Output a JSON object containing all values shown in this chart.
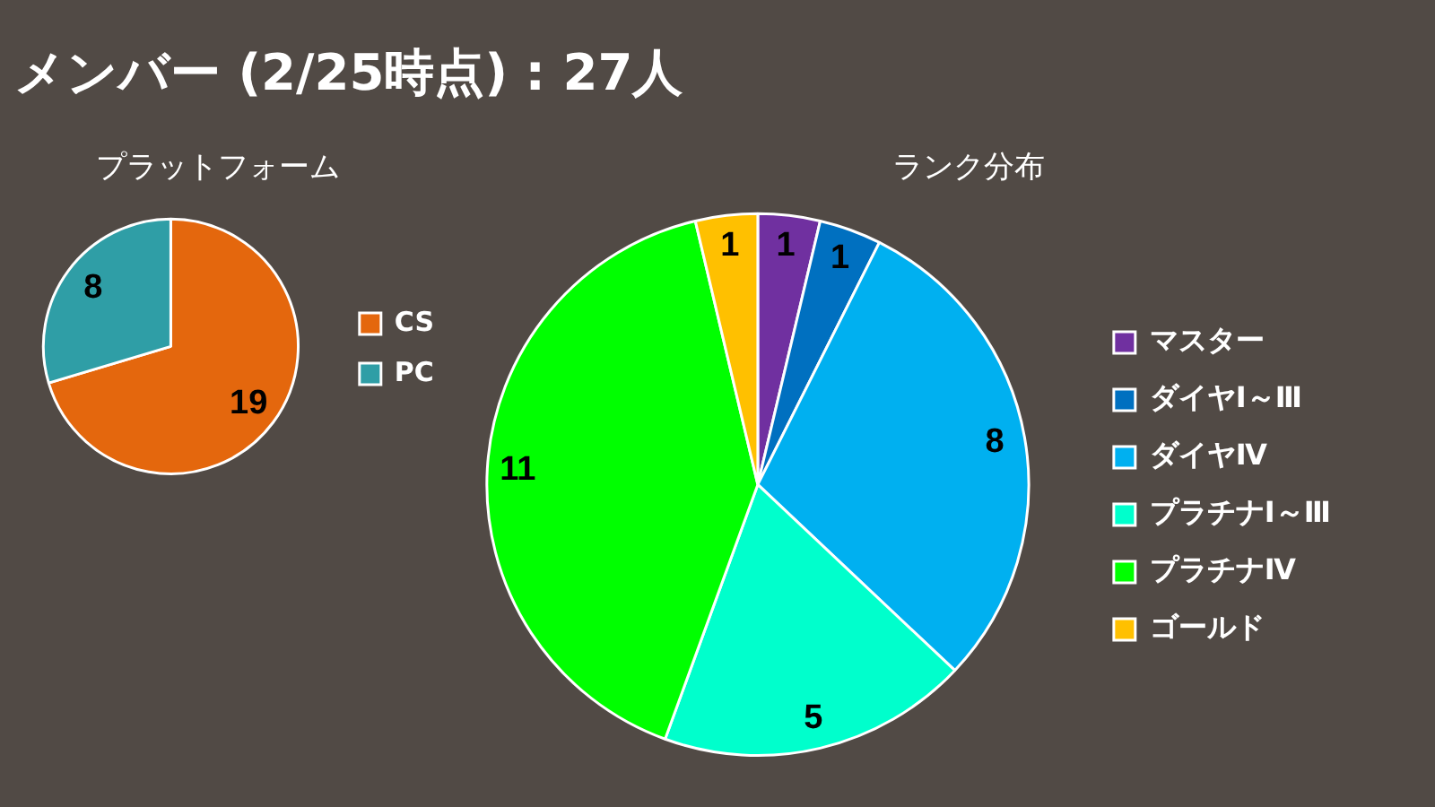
{
  "chart_data": [
    {
      "type": "pie",
      "title": "プラットフォーム",
      "annotations": [
        "メンバー (2/25時点) : 27人"
      ],
      "categories": [
        "CS",
        "PC"
      ],
      "values": [
        19,
        8
      ],
      "colors": [
        "#e4670d",
        "#2f9ea6"
      ],
      "data_labels": true,
      "legend": "right"
    },
    {
      "type": "pie",
      "title": "ランク分布",
      "categories": [
        "マスター",
        "ダイヤⅠ～Ⅲ",
        "ダイヤⅣ",
        "プラチナⅠ～Ⅲ",
        "プラチナⅣ",
        "ゴールド"
      ],
      "values": [
        1,
        1,
        8,
        5,
        11,
        1
      ],
      "colors": [
        "#7030a0",
        "#0070c0",
        "#00b0f0",
        "#00ffcc",
        "#00ff00",
        "#ffc000"
      ],
      "data_labels": true,
      "legend": "right"
    }
  ]
}
